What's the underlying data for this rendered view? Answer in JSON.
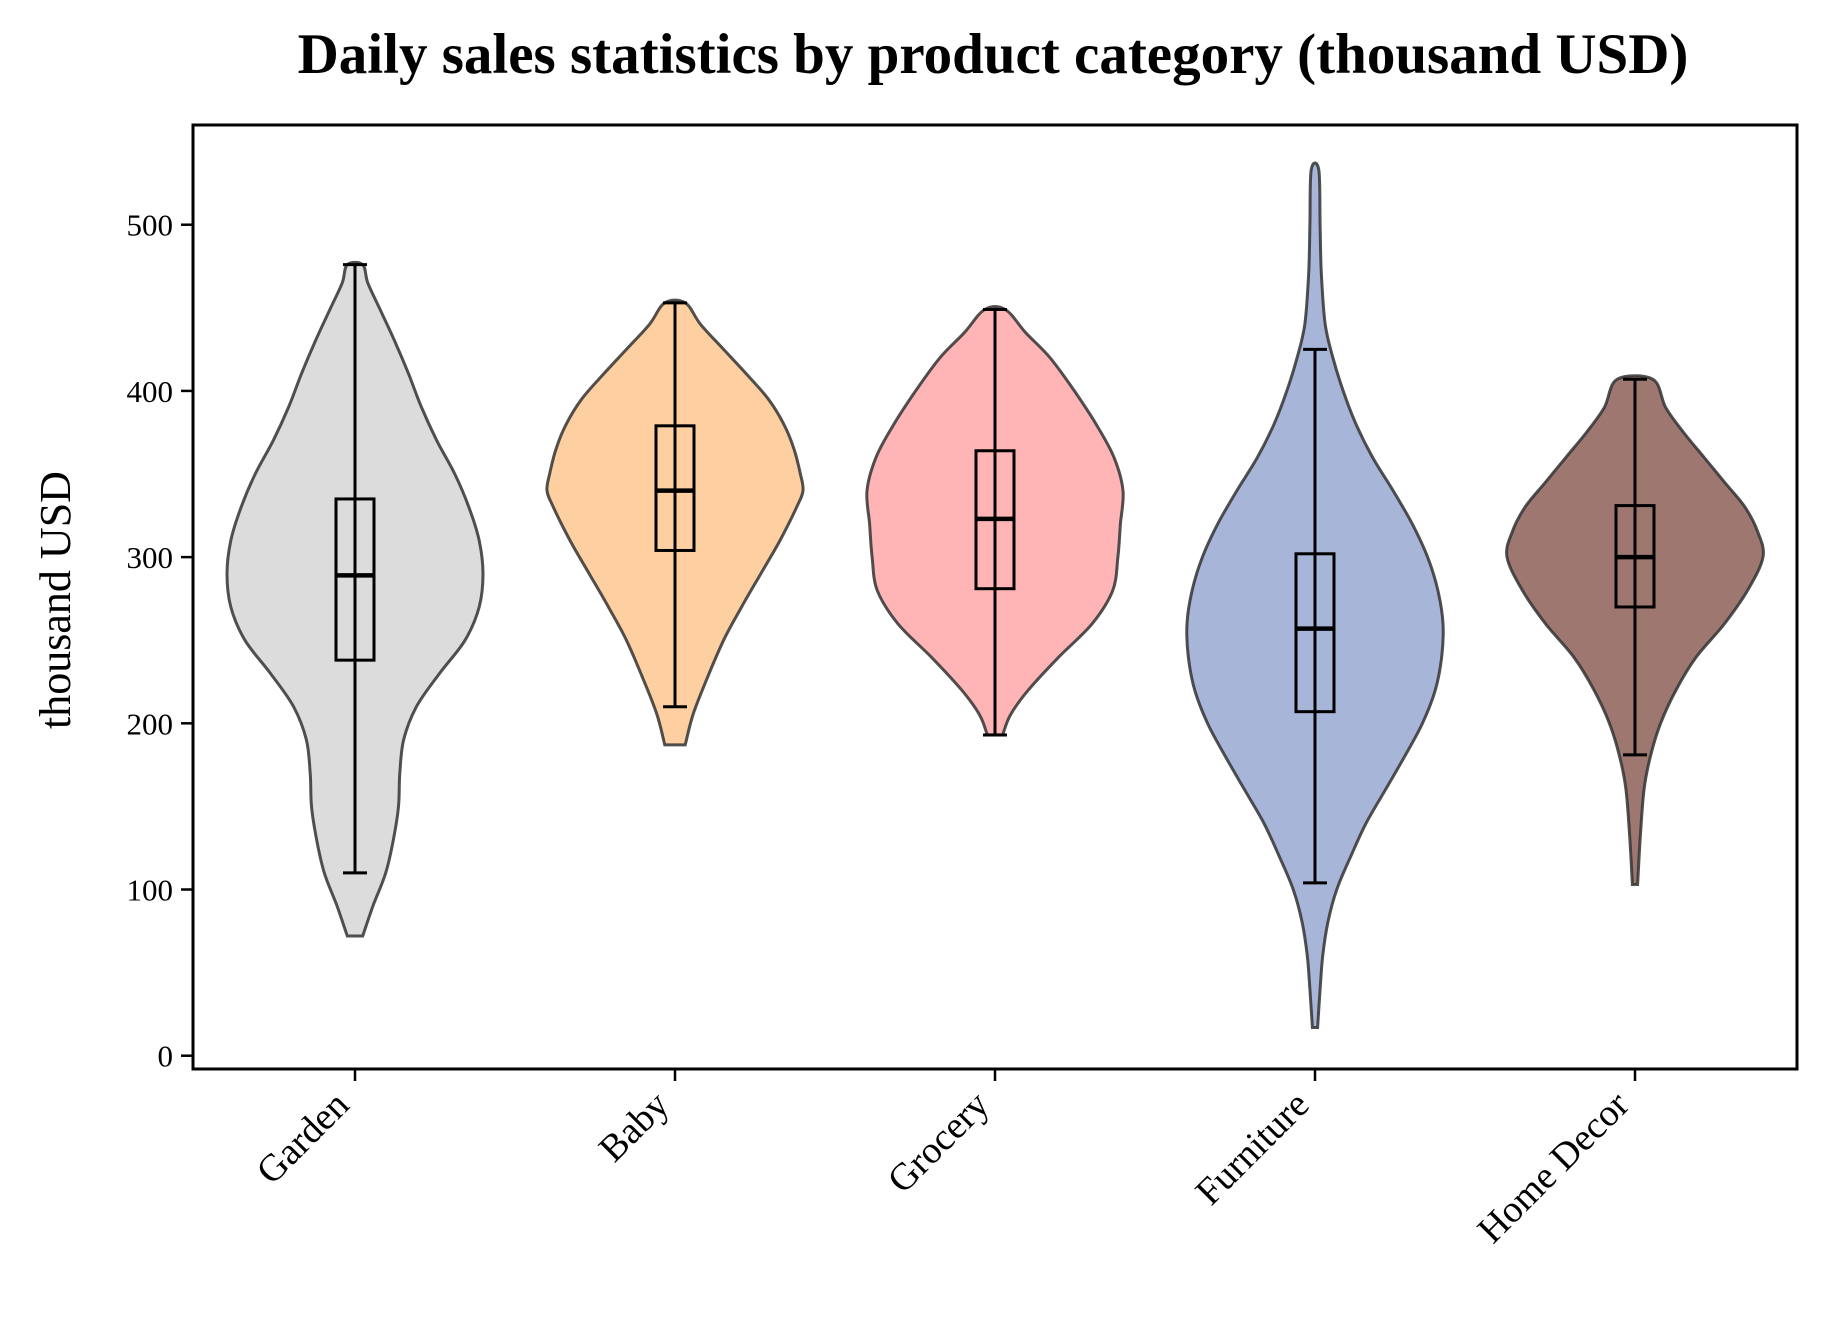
{
  "chart_data": {
    "type": "violin",
    "title": "Daily sales statistics by product category (thousand USD)",
    "xlabel": "",
    "ylabel": "thousand USD",
    "ylim": [
      -8,
      560
    ],
    "yticks": [
      0,
      100,
      200,
      300,
      400,
      500
    ],
    "grid": false,
    "legend": "none",
    "categories": [
      "Garden",
      "Baby",
      "Grocery",
      "Furniture",
      "Home Decor"
    ],
    "series": [
      {
        "category": "Garden",
        "color": "#d0d0d0",
        "min": 72,
        "max": 476,
        "whisker_low": 110,
        "whisker_high": 476,
        "q1": 238,
        "median": 289,
        "q3": 335,
        "density": [
          [
            72,
            0.06
          ],
          [
            90,
            0.14
          ],
          [
            110,
            0.24
          ],
          [
            130,
            0.3
          ],
          [
            150,
            0.34
          ],
          [
            170,
            0.35
          ],
          [
            190,
            0.38
          ],
          [
            210,
            0.48
          ],
          [
            230,
            0.66
          ],
          [
            250,
            0.86
          ],
          [
            270,
            0.97
          ],
          [
            290,
            1.0
          ],
          [
            310,
            0.97
          ],
          [
            330,
            0.89
          ],
          [
            350,
            0.78
          ],
          [
            370,
            0.64
          ],
          [
            390,
            0.52
          ],
          [
            410,
            0.42
          ],
          [
            430,
            0.31
          ],
          [
            450,
            0.19
          ],
          [
            465,
            0.1
          ],
          [
            476,
            0.06
          ]
        ]
      },
      {
        "category": "Baby",
        "color": "#fdbf80",
        "min": 187,
        "max": 453,
        "whisker_low": 210,
        "whisker_high": 453,
        "q1": 304,
        "median": 340,
        "q3": 379,
        "density": [
          [
            187,
            0.08
          ],
          [
            205,
            0.14
          ],
          [
            225,
            0.24
          ],
          [
            250,
            0.38
          ],
          [
            270,
            0.52
          ],
          [
            290,
            0.67
          ],
          [
            310,
            0.82
          ],
          [
            330,
            0.95
          ],
          [
            340,
            1.0
          ],
          [
            350,
            0.98
          ],
          [
            365,
            0.93
          ],
          [
            380,
            0.85
          ],
          [
            395,
            0.73
          ],
          [
            410,
            0.56
          ],
          [
            425,
            0.38
          ],
          [
            440,
            0.2
          ],
          [
            453,
            0.08
          ]
        ]
      },
      {
        "category": "Grocery",
        "color": "#ff9c9c",
        "min": 193,
        "max": 449,
        "whisker_low": 193,
        "whisker_high": 449,
        "q1": 281,
        "median": 323,
        "q3": 364,
        "density": [
          [
            193,
            0.06
          ],
          [
            205,
            0.12
          ],
          [
            220,
            0.26
          ],
          [
            240,
            0.5
          ],
          [
            260,
            0.76
          ],
          [
            280,
            0.92
          ],
          [
            300,
            0.96
          ],
          [
            320,
            0.98
          ],
          [
            340,
            1.0
          ],
          [
            360,
            0.93
          ],
          [
            380,
            0.79
          ],
          [
            400,
            0.62
          ],
          [
            420,
            0.43
          ],
          [
            435,
            0.24
          ],
          [
            449,
            0.08
          ]
        ]
      },
      {
        "category": "Furniture",
        "color": "#8a9dcb",
        "min": 17,
        "max": 533,
        "whisker_low": 104,
        "whisker_high": 425,
        "q1": 207,
        "median": 257,
        "q3": 302,
        "density": [
          [
            17,
            0.02
          ],
          [
            40,
            0.04
          ],
          [
            60,
            0.06
          ],
          [
            80,
            0.1
          ],
          [
            100,
            0.17
          ],
          [
            120,
            0.28
          ],
          [
            140,
            0.4
          ],
          [
            160,
            0.55
          ],
          [
            180,
            0.7
          ],
          [
            200,
            0.84
          ],
          [
            220,
            0.94
          ],
          [
            240,
            0.99
          ],
          [
            260,
            1.0
          ],
          [
            280,
            0.96
          ],
          [
            300,
            0.88
          ],
          [
            320,
            0.76
          ],
          [
            340,
            0.61
          ],
          [
            360,
            0.45
          ],
          [
            380,
            0.32
          ],
          [
            400,
            0.22
          ],
          [
            420,
            0.14
          ],
          [
            440,
            0.08
          ],
          [
            470,
            0.05
          ],
          [
            500,
            0.04
          ],
          [
            533,
            0.03
          ]
        ]
      },
      {
        "category": "Home Decor",
        "color": "#7d4a42",
        "min": 103,
        "max": 407,
        "whisker_low": 181,
        "whisker_high": 407,
        "q1": 270,
        "median": 300,
        "q3": 331,
        "density": [
          [
            103,
            0.02
          ],
          [
            130,
            0.04
          ],
          [
            160,
            0.07
          ],
          [
            180,
            0.12
          ],
          [
            200,
            0.2
          ],
          [
            220,
            0.32
          ],
          [
            240,
            0.48
          ],
          [
            260,
            0.7
          ],
          [
            280,
            0.88
          ],
          [
            300,
            1.0
          ],
          [
            315,
            0.96
          ],
          [
            330,
            0.86
          ],
          [
            345,
            0.7
          ],
          [
            360,
            0.54
          ],
          [
            375,
            0.38
          ],
          [
            390,
            0.24
          ],
          [
            407,
            0.14
          ]
        ]
      }
    ]
  }
}
